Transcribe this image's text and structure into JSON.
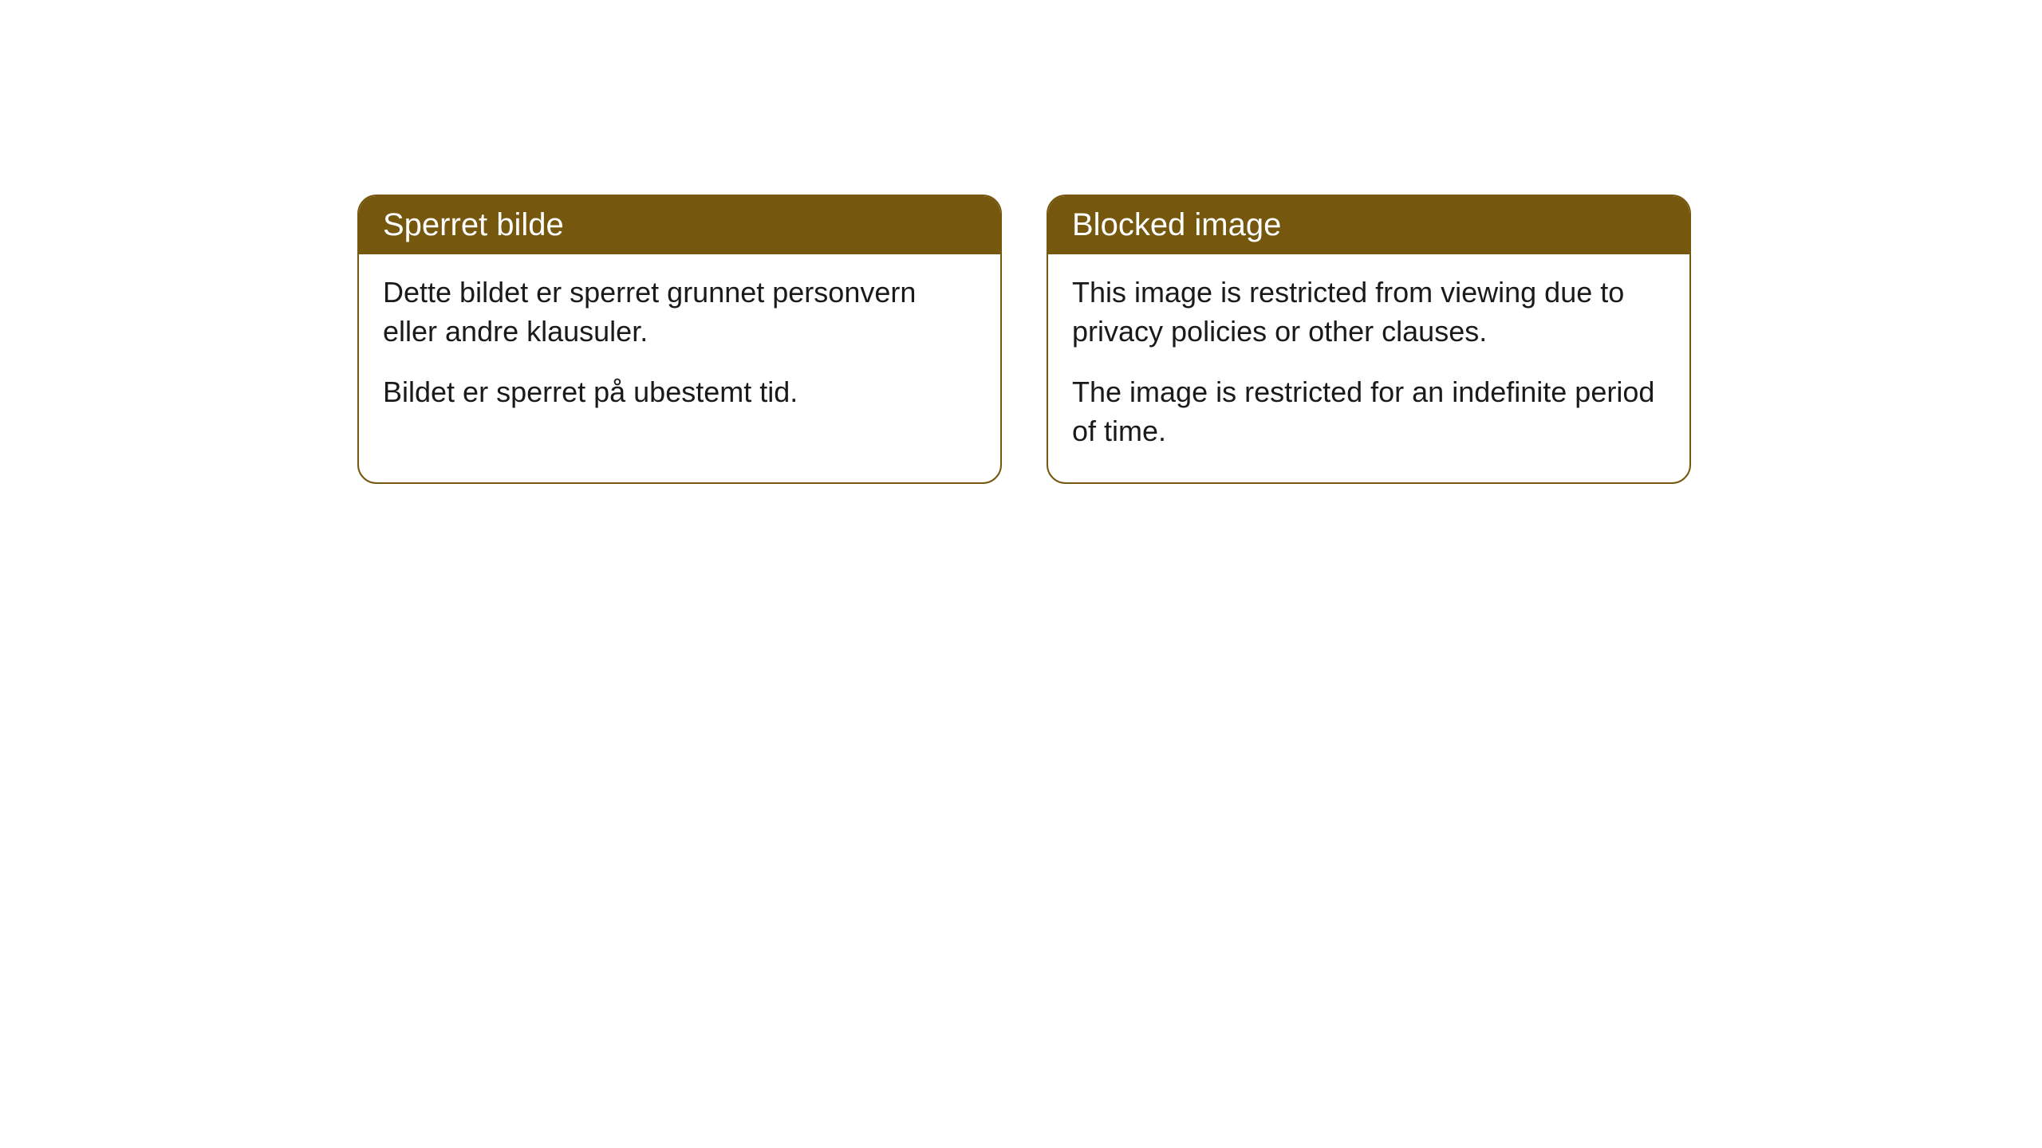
{
  "cards": [
    {
      "title": "Sperret bilde",
      "paragraph1": "Dette bildet er sperret grunnet personvern eller andre klausuler.",
      "paragraph2": "Bildet er sperret på ubestemt tid."
    },
    {
      "title": "Blocked image",
      "paragraph1": "This image is restricted from viewing due to privacy policies or other clauses.",
      "paragraph2": "The image is restricted for an indefinite period of time."
    }
  ],
  "styling": {
    "header_bg_color": "#75570e",
    "header_text_color": "#ffffff",
    "border_color": "#75570e",
    "body_bg_color": "#ffffff",
    "body_text_color": "#1a1a1a",
    "border_radius": 24,
    "header_fontsize": 40,
    "body_fontsize": 36
  }
}
